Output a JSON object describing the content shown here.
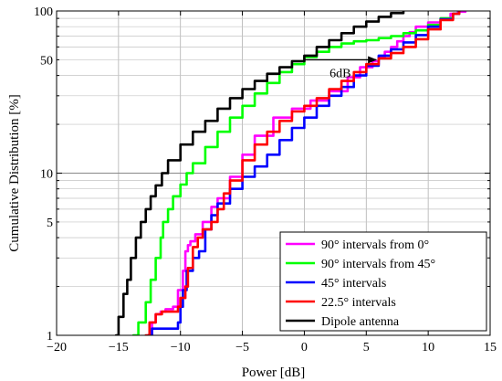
{
  "chart_data": {
    "type": "line",
    "title": "",
    "xlabel": "Power [dB]",
    "ylabel": "Cumulative Distribution [%]",
    "xlim": [
      -20,
      15
    ],
    "ylim": [
      1,
      100
    ],
    "yscale": "log",
    "grid": true,
    "legend_position": "bottom-right",
    "xticks": [
      -20,
      -15,
      -10,
      -5,
      0,
      5,
      10,
      15
    ],
    "xtick_labels": [
      "−20",
      "−15",
      "−10",
      "−5",
      "0",
      "5",
      "10",
      "15"
    ],
    "yticks": [
      1,
      5,
      10,
      50,
      100
    ],
    "ytick_labels": [
      "1",
      "5",
      "10",
      "50",
      "100"
    ],
    "annotation": {
      "text": "6dB",
      "from": [
        0,
        50
      ],
      "to": [
        5.8,
        50
      ]
    },
    "series": [
      {
        "name": "90°  intervals from 0°",
        "color": "#ff00ff",
        "x": [
          -12.6,
          -12.3,
          -12.0,
          -11.6,
          -11.2,
          -10.6,
          -10.2,
          -9.8,
          -9.6,
          -9.4,
          -9.2,
          -8.8,
          -8.2,
          -7.5,
          -7.0,
          -6.0,
          -5.0,
          -4.0,
          -2.5,
          -1.0,
          0.5,
          2.0,
          3.5,
          4.5,
          5.5,
          6.0,
          6.5,
          7.0,
          7.5,
          8.0,
          8.5,
          9.0,
          10.0,
          11.0,
          11.8,
          12.4,
          13.0
        ],
        "y": [
          1.0,
          1.2,
          1.35,
          1.4,
          1.45,
          1.5,
          1.9,
          2.5,
          3.3,
          3.6,
          3.8,
          4.2,
          5.0,
          6.2,
          7.0,
          9.5,
          13,
          17,
          22,
          25,
          28,
          32,
          39,
          45,
          49,
          52,
          56,
          60,
          65,
          70,
          74,
          80,
          85,
          90,
          96,
          99,
          100
        ]
      },
      {
        "name": "90°  intervals from 45°",
        "color": "#00ff00",
        "x": [
          -13.8,
          -13.4,
          -12.8,
          -12.4,
          -12.0,
          -11.6,
          -11.4,
          -11.0,
          -10.6,
          -10.0,
          -9.5,
          -9.0,
          -8.0,
          -7.0,
          -6.0,
          -5.0,
          -4.0,
          -3.0,
          -2.0,
          -1.0,
          0.0,
          1.0,
          2.0,
          3.0,
          4.0,
          5.0,
          6.0,
          7.0,
          8.0,
          9.0,
          10.0,
          11.0,
          12.0,
          12.5
        ],
        "y": [
          1.0,
          1.2,
          1.6,
          2.2,
          3.0,
          4.0,
          5.0,
          6.0,
          7.2,
          8.5,
          10,
          11.5,
          14.5,
          18,
          22,
          26,
          31,
          36,
          42,
          47,
          52,
          56,
          60,
          63,
          65,
          66,
          68,
          70,
          73,
          76,
          82,
          90,
          96,
          100
        ]
      },
      {
        "name": "45°  intervals",
        "color": "#0000ff",
        "x": [
          -12.6,
          -12.3,
          -11.0,
          -10.2,
          -10.0,
          -9.8,
          -9.5,
          -9.0,
          -8.5,
          -8.0,
          -7.5,
          -7.0,
          -6.0,
          -5.0,
          -4.0,
          -3.0,
          -2.0,
          -1.0,
          0.0,
          1.0,
          2.0,
          3.0,
          4.0,
          5.0,
          6.0,
          7.0,
          8.0,
          9.0,
          10.0,
          11.0,
          12.0,
          12.5
        ],
        "y": [
          1.0,
          1.1,
          1.1,
          1.2,
          1.5,
          1.9,
          2.5,
          3.0,
          3.3,
          4.5,
          5.5,
          6.5,
          8.0,
          9.5,
          11,
          13,
          16,
          19,
          22,
          26,
          30,
          34,
          40,
          46,
          53,
          58,
          64,
          71,
          80,
          89,
          96,
          100
        ]
      },
      {
        "name": "22.5°  intervals",
        "color": "#ff0000",
        "x": [
          -12.8,
          -12.5,
          -12.0,
          -11.5,
          -10.2,
          -10.0,
          -9.6,
          -9.4,
          -9.0,
          -8.6,
          -8.2,
          -7.5,
          -7.0,
          -6.5,
          -6.0,
          -5.0,
          -4.0,
          -3.0,
          -2.0,
          -1.0,
          0.0,
          1.0,
          2.0,
          3.0,
          4.0,
          5.0,
          6.0,
          7.0,
          8.0,
          9.0,
          10.0,
          11.0,
          12.0,
          12.5
        ],
        "y": [
          1.0,
          1.2,
          1.35,
          1.4,
          1.5,
          1.7,
          2.0,
          2.6,
          3.5,
          4.0,
          4.5,
          5.0,
          6.0,
          7.5,
          9.0,
          12,
          15,
          18,
          21,
          24,
          26,
          29,
          33,
          37,
          42,
          47,
          51,
          55,
          60,
          67,
          77,
          88,
          96,
          100
        ]
      },
      {
        "name": "Dipole antenna",
        "color": "#000000",
        "x": [
          -15.2,
          -15.0,
          -14.6,
          -14.3,
          -14.0,
          -13.6,
          -13.2,
          -12.8,
          -12.4,
          -12.0,
          -11.5,
          -11.0,
          -10.0,
          -9.0,
          -8.0,
          -7.0,
          -6.0,
          -5.0,
          -4.0,
          -3.0,
          -2.0,
          -1.0,
          0.0,
          1.0,
          2.0,
          3.0,
          4.0,
          5.0,
          6.0,
          7.0,
          8.0
        ],
        "y": [
          1.0,
          1.3,
          1.8,
          2.2,
          3.0,
          4.0,
          5.0,
          6.0,
          7.2,
          8.4,
          10,
          12,
          15,
          18,
          21,
          25,
          29,
          33,
          37,
          41,
          45,
          49,
          53,
          60,
          66,
          73,
          80,
          86,
          92,
          97,
          100
        ]
      }
    ]
  }
}
